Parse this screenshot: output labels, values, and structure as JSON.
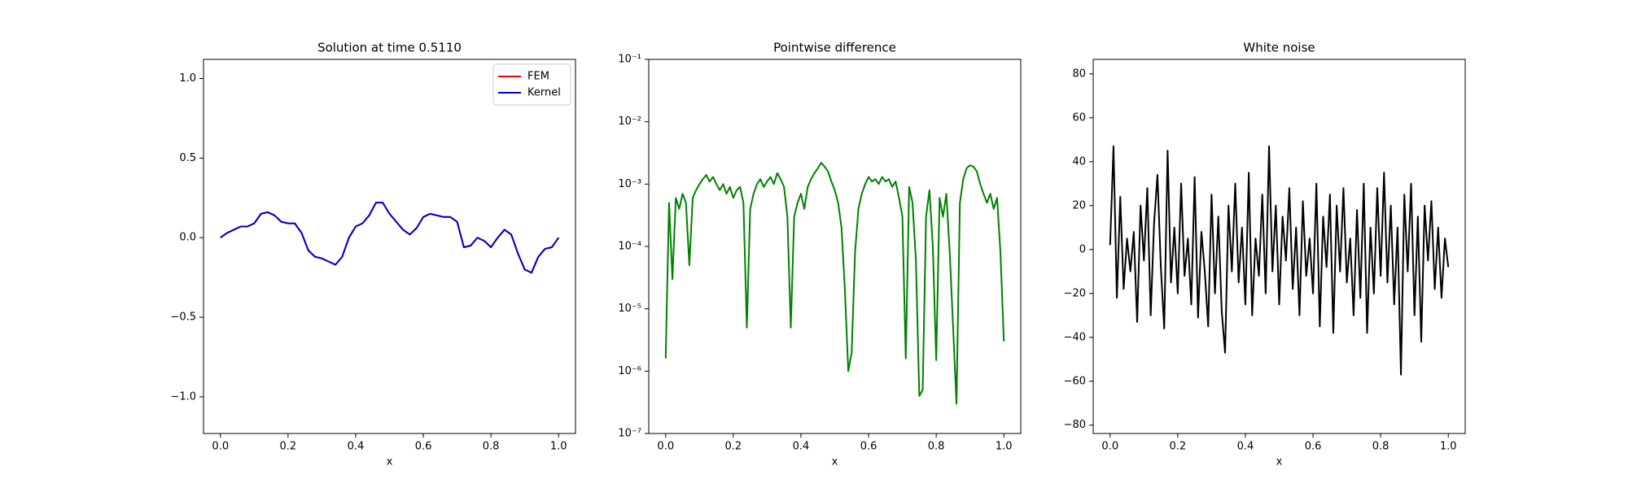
{
  "chart_data": [
    {
      "type": "line",
      "title": "Solution at time 0.5110",
      "xlabel": "x",
      "xlim": [
        -0.05,
        1.05
      ],
      "xticks": [
        {
          "value": 0,
          "label": "0.0"
        },
        0.2,
        0.4,
        0.6,
        0.8,
        {
          "value": 1,
          "label": "1.0"
        }
      ],
      "ylim": [
        -1.23,
        1.12
      ],
      "yticks": [
        {
          "value": -1,
          "label": "−1.0"
        },
        {
          "value": -0.5,
          "label": "−0.5"
        },
        {
          "value": 0,
          "label": "0.0"
        },
        0.5,
        {
          "value": 1,
          "label": "1.0"
        }
      ],
      "legend": "upper right",
      "x": [
        0,
        0.02,
        0.04,
        0.06,
        0.08,
        0.1,
        0.12,
        0.14,
        0.16,
        0.18,
        0.2,
        0.22,
        0.24,
        0.26,
        0.28,
        0.3,
        0.32,
        0.34,
        0.36,
        0.38,
        0.4,
        0.42,
        0.44,
        0.46,
        0.48,
        0.5,
        0.52,
        0.54,
        0.56,
        0.58,
        0.6,
        0.62,
        0.64,
        0.66,
        0.68,
        0.7,
        0.72,
        0.74,
        0.76,
        0.78,
        0.8,
        0.82,
        0.84,
        0.86,
        0.88,
        0.9,
        0.92,
        0.94,
        0.96,
        0.98,
        1
      ],
      "series": [
        {
          "name": "FEM",
          "color": "#ff0000",
          "values": [
            0,
            0.03,
            0.05,
            0.07,
            0.07,
            0.09,
            0.15,
            0.16,
            0.14,
            0.1,
            0.09,
            0.09,
            0.03,
            -0.08,
            -0.12,
            -0.13,
            -0.15,
            -0.17,
            -0.12,
            0,
            0.07,
            0.09,
            0.14,
            0.22,
            0.22,
            0.15,
            0.1,
            0.05,
            0.02,
            0.06,
            0.13,
            0.15,
            0.14,
            0.13,
            0.13,
            0.1,
            -0.06,
            -0.05,
            0,
            -0.02,
            -0.06,
            0,
            0.05,
            0.02,
            -0.1,
            -0.2,
            -0.22,
            -0.12,
            -0.07,
            -0.06,
            0
          ]
        },
        {
          "name": "Kernel",
          "color": "#0000cc",
          "values": [
            0,
            0.03,
            0.05,
            0.07,
            0.07,
            0.09,
            0.15,
            0.16,
            0.14,
            0.1,
            0.09,
            0.09,
            0.03,
            -0.08,
            -0.12,
            -0.13,
            -0.15,
            -0.17,
            -0.12,
            0,
            0.07,
            0.09,
            0.14,
            0.22,
            0.22,
            0.15,
            0.1,
            0.05,
            0.02,
            0.06,
            0.13,
            0.15,
            0.14,
            0.13,
            0.13,
            0.1,
            -0.06,
            -0.05,
            0,
            -0.02,
            -0.06,
            0,
            0.05,
            0.02,
            -0.1,
            -0.2,
            -0.22,
            -0.12,
            -0.07,
            -0.06,
            0
          ]
        }
      ]
    },
    {
      "type": "line",
      "title": "Pointwise difference",
      "xlabel": "x",
      "log_y": true,
      "xlim": [
        -0.05,
        1.05
      ],
      "xticks": [
        {
          "value": 0,
          "label": "0.0"
        },
        0.2,
        0.4,
        0.6,
        0.8,
        {
          "value": 1,
          "label": "1.0"
        }
      ],
      "ylim": [
        1e-07,
        0.1
      ],
      "yticks": [
        {
          "value": 1e-07,
          "label": "10⁻⁷"
        },
        {
          "value": 1e-06,
          "label": "10⁻⁶"
        },
        {
          "value": 1e-05,
          "label": "10⁻⁵"
        },
        {
          "value": 0.0001,
          "label": "10⁻⁴"
        },
        {
          "value": 0.001,
          "label": "10⁻³"
        },
        {
          "value": 0.01,
          "label": "10⁻²"
        },
        {
          "value": 0.1,
          "label": "10⁻¹"
        }
      ],
      "x": [
        0,
        0.01,
        0.02,
        0.03,
        0.04,
        0.05,
        0.06,
        0.07,
        0.08,
        0.09,
        0.1,
        0.11,
        0.12,
        0.13,
        0.14,
        0.15,
        0.16,
        0.17,
        0.18,
        0.19,
        0.2,
        0.21,
        0.22,
        0.23,
        0.24,
        0.25,
        0.26,
        0.27,
        0.28,
        0.29,
        0.3,
        0.31,
        0.32,
        0.33,
        0.34,
        0.35,
        0.36,
        0.37,
        0.38,
        0.39,
        0.4,
        0.41,
        0.42,
        0.43,
        0.44,
        0.45,
        0.46,
        0.47,
        0.48,
        0.49,
        0.5,
        0.51,
        0.52,
        0.53,
        0.54,
        0.55,
        0.56,
        0.57,
        0.58,
        0.59,
        0.6,
        0.61,
        0.62,
        0.63,
        0.64,
        0.65,
        0.66,
        0.67,
        0.68,
        0.69,
        0.7,
        0.71,
        0.72,
        0.73,
        0.74,
        0.75,
        0.76,
        0.77,
        0.78,
        0.79,
        0.8,
        0.81,
        0.82,
        0.83,
        0.84,
        0.85,
        0.86,
        0.87,
        0.88,
        0.89,
        0.9,
        0.91,
        0.92,
        0.93,
        0.94,
        0.95,
        0.96,
        0.97,
        0.98,
        0.99,
        1
      ],
      "series": [
        {
          "color": "#008000",
          "values": [
            1.6e-06,
            0.0005,
            3e-05,
            0.0006,
            0.0004,
            0.0007,
            0.0005,
            5e-05,
            0.0006,
            0.0008,
            0.001,
            0.0012,
            0.0014,
            0.0011,
            0.0013,
            0.001,
            0.0008,
            0.001,
            0.0007,
            0.0009,
            0.0006,
            0.0008,
            0.0009,
            0.0005,
            5e-06,
            0.0004,
            0.0007,
            0.001,
            0.0012,
            0.0009,
            0.0011,
            0.0013,
            0.001,
            0.0015,
            0.0012,
            0.0009,
            0.0003,
            5e-06,
            0.0003,
            0.0005,
            0.0007,
            0.0004,
            0.0009,
            0.0012,
            0.0015,
            0.0018,
            0.0022,
            0.0019,
            0.0016,
            0.0011,
            0.0008,
            0.0005,
            0.0002,
            2e-05,
            1e-06,
            2e-06,
            8e-05,
            0.0004,
            0.0007,
            0.001,
            0.0013,
            0.0011,
            0.0012,
            0.001,
            0.0013,
            0.0011,
            0.0012,
            0.0009,
            0.0011,
            0.0006,
            0.0003,
            1.6e-06,
            0.0009,
            0.0005,
            6e-05,
            4e-07,
            5e-07,
            0.0003,
            0.0008,
            0.0001,
            1.5e-06,
            0.0006,
            0.0003,
            0.0007,
            8e-05,
            5e-06,
            3e-07,
            0.0005,
            0.0012,
            0.0018,
            0.002,
            0.0019,
            0.0016,
            0.001,
            0.0007,
            0.0005,
            0.0007,
            0.0004,
            0.0006,
            8e-05,
            3e-06
          ]
        }
      ]
    },
    {
      "type": "line",
      "title": "White noise",
      "xlabel": "x",
      "xlim": [
        -0.05,
        1.05
      ],
      "xticks": [
        {
          "value": 0,
          "label": "0.0"
        },
        0.2,
        0.4,
        0.6,
        0.8,
        {
          "value": 1,
          "label": "1.0"
        }
      ],
      "ylim": [
        -83.8,
        86.6
      ],
      "yticks": [
        {
          "value": -80,
          "label": "−80"
        },
        {
          "value": -60,
          "label": "−60"
        },
        {
          "value": -40,
          "label": "−40"
        },
        {
          "value": -20,
          "label": "−20"
        },
        0,
        20,
        40,
        60,
        80
      ],
      "x": [
        0,
        0.01,
        0.02,
        0.03,
        0.04,
        0.05,
        0.06,
        0.07,
        0.08,
        0.09,
        0.1,
        0.11,
        0.12,
        0.13,
        0.14,
        0.15,
        0.16,
        0.17,
        0.18,
        0.19,
        0.2,
        0.21,
        0.22,
        0.23,
        0.24,
        0.25,
        0.26,
        0.27,
        0.28,
        0.29,
        0.3,
        0.31,
        0.32,
        0.33,
        0.34,
        0.35,
        0.36,
        0.37,
        0.38,
        0.39,
        0.4,
        0.41,
        0.42,
        0.43,
        0.44,
        0.45,
        0.46,
        0.47,
        0.48,
        0.49,
        0.5,
        0.51,
        0.52,
        0.53,
        0.54,
        0.55,
        0.56,
        0.57,
        0.58,
        0.59,
        0.6,
        0.61,
        0.62,
        0.63,
        0.64,
        0.65,
        0.66,
        0.67,
        0.68,
        0.69,
        0.7,
        0.71,
        0.72,
        0.73,
        0.74,
        0.75,
        0.76,
        0.77,
        0.78,
        0.79,
        0.8,
        0.81,
        0.82,
        0.83,
        0.84,
        0.85,
        0.86,
        0.87,
        0.88,
        0.89,
        0.9,
        0.91,
        0.92,
        0.93,
        0.94,
        0.95,
        0.96,
        0.97,
        0.98,
        0.99,
        1
      ],
      "series": [
        {
          "color": "#000000",
          "values": [
            2,
            47,
            -22,
            24,
            -18,
            5,
            -10,
            8,
            -33,
            20,
            -5,
            28,
            -30,
            12,
            34,
            -8,
            -36,
            45,
            -15,
            10,
            -20,
            30,
            -12,
            5,
            -25,
            33,
            -31,
            8,
            -10,
            -35,
            25,
            -20,
            15,
            -28,
            -47,
            20,
            -10,
            30,
            -15,
            10,
            -25,
            35,
            -30,
            5,
            -12,
            25,
            -20,
            47,
            -10,
            20,
            -25,
            15,
            -5,
            28,
            -18,
            10,
            -30,
            22,
            -12,
            5,
            -20,
            30,
            -35,
            15,
            -8,
            25,
            -38,
            20,
            -10,
            28,
            -15,
            5,
            -30,
            18,
            -22,
            30,
            -38,
            10,
            -20,
            28,
            -12,
            35,
            -15,
            20,
            -25,
            10,
            -57,
            25,
            -10,
            30,
            -30,
            15,
            -42,
            20,
            -5,
            22,
            -18,
            10,
            -22,
            5,
            -8
          ]
        }
      ]
    }
  ]
}
